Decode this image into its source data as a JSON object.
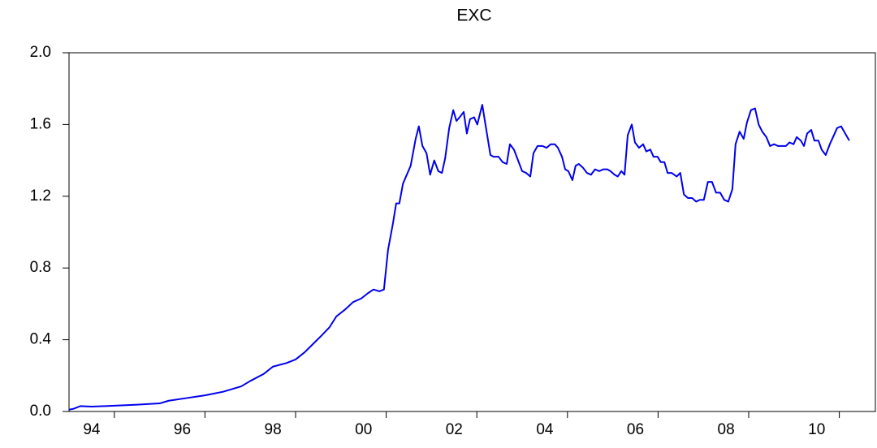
{
  "chart_data": {
    "type": "line",
    "title": "EXC",
    "xlim": [
      1994,
      2011.3
    ],
    "xticks": [
      {
        "value": 1994,
        "label": "94"
      },
      {
        "value": 1996,
        "label": "96"
      },
      {
        "value": 1998,
        "label": "98"
      },
      {
        "value": 2000,
        "label": "00"
      },
      {
        "value": 2002,
        "label": "02"
      },
      {
        "value": 2004,
        "label": "04"
      },
      {
        "value": 2006,
        "label": "06"
      },
      {
        "value": 2008,
        "label": "08"
      },
      {
        "value": 2010,
        "label": "10"
      }
    ],
    "ylim": [
      0,
      2
    ],
    "yticks": [
      {
        "value": 0,
        "label": "0.0"
      },
      0.4,
      0.8,
      1.2,
      1.6,
      {
        "value": 2,
        "label": "2.0"
      }
    ],
    "grid": false,
    "x": [
      1994.0,
      1994.1,
      1994.25,
      1994.5,
      1995.0,
      1995.5,
      1996.0,
      1996.2,
      1996.6,
      1997.0,
      1997.4,
      1997.8,
      1998.0,
      1998.3,
      1998.5,
      1998.8,
      1999.0,
      1999.2,
      1999.4,
      1999.56,
      1999.75,
      1999.9,
      2000.1,
      2000.27,
      2000.45,
      2000.6,
      2000.72,
      2000.85,
      2000.95,
      2001.04,
      2001.15,
      2001.22,
      2001.29,
      2001.37,
      2001.54,
      2001.65,
      2001.72,
      2001.8,
      2001.89,
      2001.97,
      2002.06,
      2002.15,
      2002.23,
      2002.3,
      2002.39,
      2002.48,
      2002.55,
      2002.62,
      2002.71,
      2002.78,
      2002.85,
      2002.94,
      2003.01,
      2003.12,
      2003.21,
      2003.3,
      2003.37,
      2003.48,
      2003.57,
      2003.66,
      2003.73,
      2003.82,
      2003.91,
      2004.0,
      2004.09,
      2004.18,
      2004.25,
      2004.34,
      2004.45,
      2004.54,
      2004.63,
      2004.72,
      2004.79,
      2004.88,
      2004.95,
      2005.02,
      2005.11,
      2005.18,
      2005.25,
      2005.34,
      2005.43,
      2005.52,
      2005.61,
      2005.7,
      2005.79,
      2005.88,
      2005.95,
      2006.04,
      2006.11,
      2006.19,
      2006.26,
      2006.33,
      2006.42,
      2006.49,
      2006.58,
      2006.67,
      2006.74,
      2006.83,
      2006.9,
      2006.99,
      2007.06,
      2007.14,
      2007.21,
      2007.3,
      2007.41,
      2007.49,
      2007.57,
      2007.66,
      2007.75,
      2007.84,
      2007.92,
      2008.01,
      2008.1,
      2008.19,
      2008.28,
      2008.37,
      2008.46,
      2008.55,
      2008.64,
      2008.71,
      2008.8,
      2008.89,
      2008.96,
      2009.05,
      2009.14,
      2009.22,
      2009.3,
      2009.39,
      2009.47,
      2009.56,
      2009.65,
      2009.73,
      2009.82,
      2009.9,
      2009.99,
      2010.06,
      2010.15,
      2010.22,
      2010.29,
      2010.38,
      2010.45,
      2010.54,
      2010.61,
      2010.7,
      2010.79,
      2010.88,
      2010.95,
      2011.04,
      2011.13,
      2011.22
    ],
    "series": [
      {
        "name": "EXC",
        "color": "#0000ee",
        "values": [
          0.01,
          0.015,
          0.03,
          0.027,
          0.032,
          0.038,
          0.045,
          0.06,
          0.075,
          0.09,
          0.11,
          0.14,
          0.17,
          0.21,
          0.25,
          0.27,
          0.29,
          0.33,
          0.38,
          0.42,
          0.47,
          0.53,
          0.57,
          0.61,
          0.63,
          0.66,
          0.68,
          0.67,
          0.68,
          0.9,
          1.05,
          1.16,
          1.16,
          1.27,
          1.37,
          1.52,
          1.59,
          1.48,
          1.44,
          1.32,
          1.4,
          1.34,
          1.33,
          1.41,
          1.58,
          1.68,
          1.62,
          1.64,
          1.67,
          1.55,
          1.63,
          1.64,
          1.6,
          1.71,
          1.57,
          1.43,
          1.42,
          1.42,
          1.39,
          1.38,
          1.49,
          1.46,
          1.4,
          1.34,
          1.33,
          1.31,
          1.44,
          1.48,
          1.48,
          1.47,
          1.49,
          1.49,
          1.47,
          1.42,
          1.35,
          1.34,
          1.29,
          1.37,
          1.38,
          1.36,
          1.33,
          1.32,
          1.35,
          1.34,
          1.35,
          1.35,
          1.34,
          1.32,
          1.31,
          1.34,
          1.32,
          1.54,
          1.6,
          1.5,
          1.47,
          1.49,
          1.45,
          1.46,
          1.42,
          1.42,
          1.39,
          1.39,
          1.33,
          1.33,
          1.31,
          1.33,
          1.21,
          1.19,
          1.19,
          1.17,
          1.18,
          1.18,
          1.28,
          1.28,
          1.22,
          1.22,
          1.18,
          1.17,
          1.24,
          1.49,
          1.56,
          1.52,
          1.61,
          1.68,
          1.69,
          1.6,
          1.56,
          1.53,
          1.48,
          1.49,
          1.48,
          1.48,
          1.48,
          1.5,
          1.49,
          1.53,
          1.51,
          1.48,
          1.55,
          1.57,
          1.51,
          1.51,
          1.46,
          1.43,
          1.49,
          1.54,
          1.58,
          1.59,
          1.55,
          1.51
        ]
      }
    ]
  }
}
